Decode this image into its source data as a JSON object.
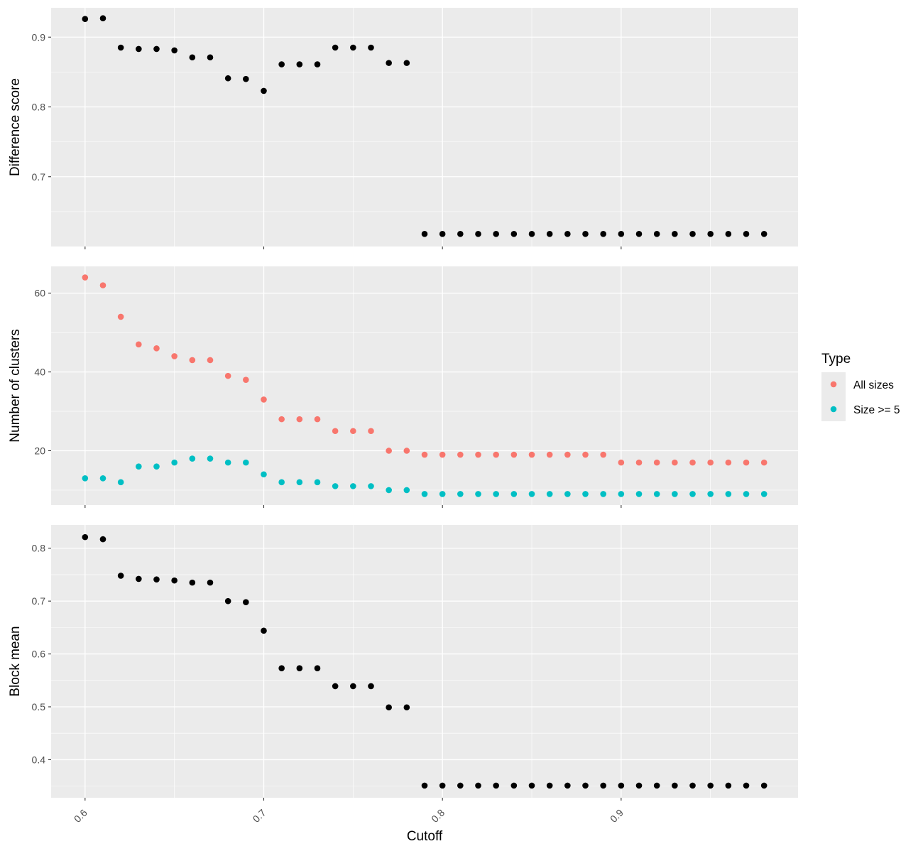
{
  "colors": {
    "panel_bg": "#EBEBEB",
    "grid_major": "#FFFFFF",
    "tick_text": "#4D4D4D",
    "axis_title": "#000000",
    "point_black": "#000000",
    "all_sizes": "#F8766D",
    "size_ge_5": "#00BFC4"
  },
  "legend": {
    "title": "Type",
    "placement": "right",
    "items": [
      {
        "label": "All sizes",
        "color": "#F8766D"
      },
      {
        "label": "Size >= 5",
        "color": "#00BFC4"
      }
    ]
  },
  "chart_data": [
    {
      "type": "scatter",
      "ylabel": "Difference score",
      "xlim": [
        0.581,
        0.999
      ],
      "ylim": [
        0.6,
        0.942
      ],
      "y_ticks": [
        0.7,
        0.8,
        0.9
      ],
      "y_tick_labels": [
        "0.7",
        "0.8",
        "0.9"
      ],
      "series": [
        {
          "color": "#000000",
          "x": [
            0.6,
            0.61,
            0.62,
            0.63,
            0.64,
            0.65,
            0.66,
            0.67,
            0.68,
            0.69,
            0.7,
            0.71,
            0.72,
            0.73,
            0.74,
            0.75,
            0.76,
            0.77,
            0.78,
            0.79,
            0.8,
            0.81,
            0.82,
            0.83,
            0.84,
            0.85,
            0.86,
            0.87,
            0.88,
            0.89,
            0.9,
            0.91,
            0.92,
            0.93,
            0.94,
            0.95,
            0.96,
            0.97,
            0.98
          ],
          "y": [
            0.926,
            0.927,
            0.885,
            0.883,
            0.883,
            0.881,
            0.871,
            0.871,
            0.841,
            0.84,
            0.823,
            0.861,
            0.861,
            0.861,
            0.885,
            0.885,
            0.885,
            0.863,
            0.863,
            0.618,
            0.618,
            0.618,
            0.618,
            0.618,
            0.618,
            0.618,
            0.618,
            0.618,
            0.618,
            0.618,
            0.618,
            0.618,
            0.618,
            0.618,
            0.618,
            0.618,
            0.618,
            0.618,
            0.618
          ]
        }
      ]
    },
    {
      "type": "scatter",
      "ylabel": "Number of clusters",
      "xlim": [
        0.581,
        0.999
      ],
      "ylim": [
        6.2,
        66.8
      ],
      "y_ticks": [
        20,
        40,
        60
      ],
      "y_tick_labels": [
        "20",
        "40",
        "60"
      ],
      "series": [
        {
          "name": "All sizes",
          "color": "#F8766D",
          "x": [
            0.6,
            0.61,
            0.62,
            0.63,
            0.64,
            0.65,
            0.66,
            0.67,
            0.68,
            0.69,
            0.7,
            0.71,
            0.72,
            0.73,
            0.74,
            0.75,
            0.76,
            0.77,
            0.78,
            0.79,
            0.8,
            0.81,
            0.82,
            0.83,
            0.84,
            0.85,
            0.86,
            0.87,
            0.88,
            0.89,
            0.9,
            0.91,
            0.92,
            0.93,
            0.94,
            0.95,
            0.96,
            0.97,
            0.98
          ],
          "y": [
            64,
            62,
            54,
            47,
            46,
            44,
            43,
            43,
            39,
            38,
            33,
            28,
            28,
            28,
            25,
            25,
            25,
            20,
            20,
            19,
            19,
            19,
            19,
            19,
            19,
            19,
            19,
            19,
            19,
            19,
            17,
            17,
            17,
            17,
            17,
            17,
            17,
            17,
            17
          ]
        },
        {
          "name": "Size >= 5",
          "color": "#00BFC4",
          "x": [
            0.6,
            0.61,
            0.62,
            0.63,
            0.64,
            0.65,
            0.66,
            0.67,
            0.68,
            0.69,
            0.7,
            0.71,
            0.72,
            0.73,
            0.74,
            0.75,
            0.76,
            0.77,
            0.78,
            0.79,
            0.8,
            0.81,
            0.82,
            0.83,
            0.84,
            0.85,
            0.86,
            0.87,
            0.88,
            0.89,
            0.9,
            0.91,
            0.92,
            0.93,
            0.94,
            0.95,
            0.96,
            0.97,
            0.98
          ],
          "y": [
            13,
            13,
            12,
            16,
            16,
            17,
            18,
            18,
            17,
            17,
            14,
            12,
            12,
            12,
            11,
            11,
            11,
            10,
            10,
            9,
            9,
            9,
            9,
            9,
            9,
            9,
            9,
            9,
            9,
            9,
            9,
            9,
            9,
            9,
            9,
            9,
            9,
            9,
            9
          ]
        }
      ]
    },
    {
      "type": "scatter",
      "ylabel": "Block mean",
      "xlabel": "Cutoff",
      "xlim": [
        0.581,
        0.999
      ],
      "ylim": [
        0.328,
        0.844
      ],
      "y_ticks": [
        0.4,
        0.5,
        0.6,
        0.7,
        0.8
      ],
      "y_tick_labels": [
        "0.4",
        "0.5",
        "0.6",
        "0.7",
        "0.8"
      ],
      "x_ticks": [
        0.6,
        0.7,
        0.8,
        0.9
      ],
      "x_tick_labels": [
        "0.6",
        "0.7",
        "0.8",
        "0.9"
      ],
      "series": [
        {
          "color": "#000000",
          "x": [
            0.6,
            0.61,
            0.62,
            0.63,
            0.64,
            0.65,
            0.66,
            0.67,
            0.68,
            0.69,
            0.7,
            0.71,
            0.72,
            0.73,
            0.74,
            0.75,
            0.76,
            0.77,
            0.78,
            0.79,
            0.8,
            0.81,
            0.82,
            0.83,
            0.84,
            0.85,
            0.86,
            0.87,
            0.88,
            0.89,
            0.9,
            0.91,
            0.92,
            0.93,
            0.94,
            0.95,
            0.96,
            0.97,
            0.98
          ],
          "y": [
            0.821,
            0.817,
            0.748,
            0.742,
            0.741,
            0.739,
            0.735,
            0.735,
            0.7,
            0.698,
            0.644,
            0.573,
            0.573,
            0.573,
            0.539,
            0.539,
            0.539,
            0.499,
            0.499,
            0.351,
            0.351,
            0.351,
            0.351,
            0.351,
            0.351,
            0.351,
            0.351,
            0.351,
            0.351,
            0.351,
            0.351,
            0.351,
            0.351,
            0.351,
            0.351,
            0.351,
            0.351,
            0.351,
            0.351
          ]
        }
      ]
    }
  ]
}
